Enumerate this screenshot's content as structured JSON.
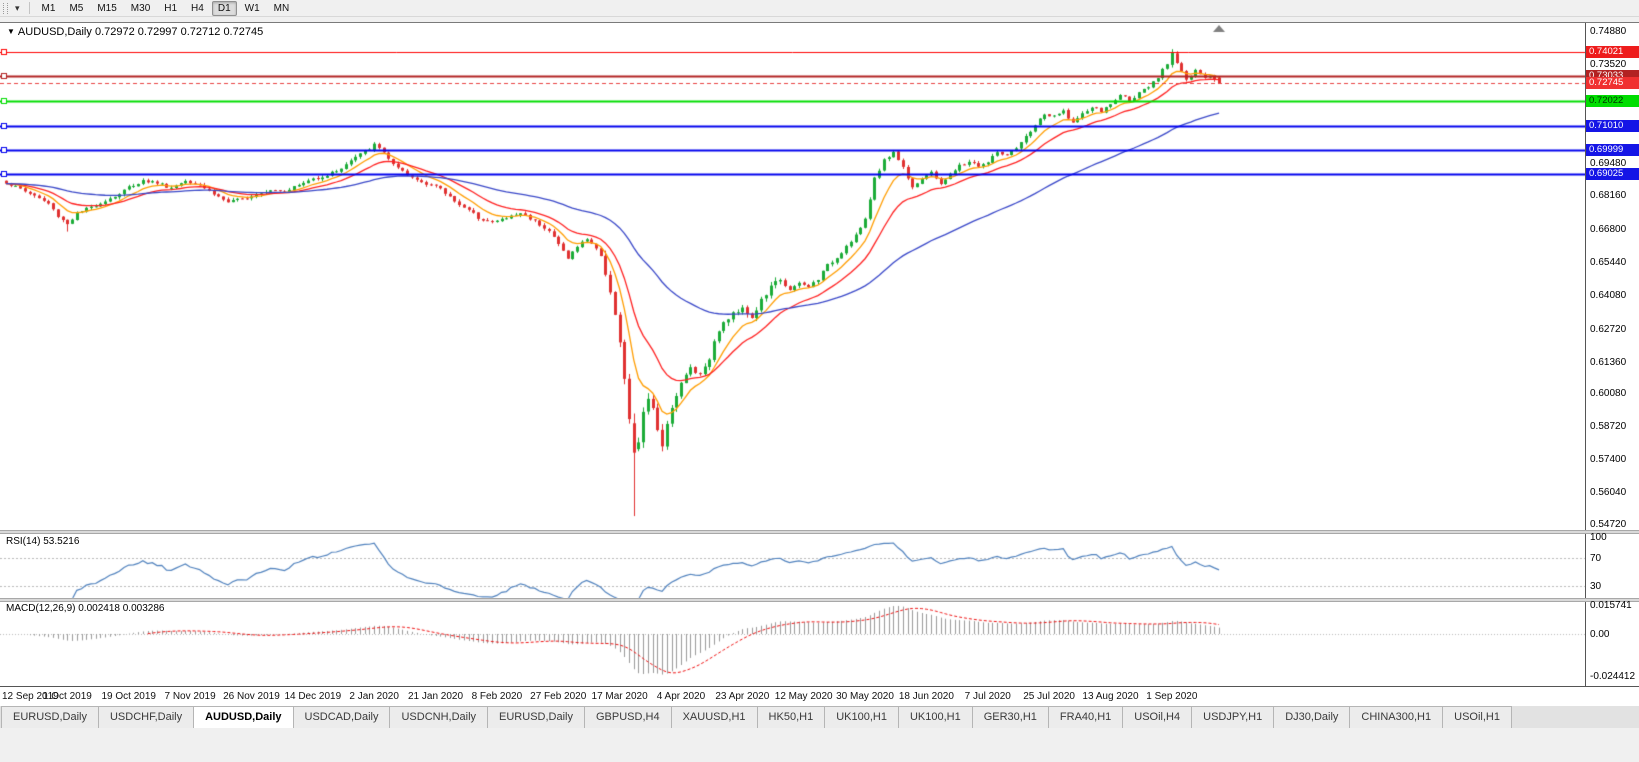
{
  "toolbar": {
    "timeframes": [
      "M1",
      "M5",
      "M15",
      "M30",
      "H1",
      "H4",
      "D1",
      "W1",
      "MN"
    ],
    "selected": "D1"
  },
  "chart": {
    "symbol": "AUDUSD,Daily",
    "ohlc": {
      "open": "0.72972",
      "high": "0.72997",
      "low": "0.72712",
      "close": "0.72745"
    }
  },
  "price_axis": {
    "ticks": [
      "0.74880",
      "0.73520",
      "0.69480",
      "0.68160",
      "0.66800",
      "0.65440",
      "0.64080",
      "0.62720",
      "0.61360",
      "0.60080",
      "0.58720",
      "0.57400",
      "0.56040",
      "0.54720"
    ],
    "tags": [
      {
        "value": "0.74021",
        "bg": "#ee1c1c",
        "fg": "#ffffff"
      },
      {
        "value": "0.73033",
        "bg": "#b22222",
        "fg": "#ffffff"
      },
      {
        "value": "0.72745",
        "bg": "#f03030",
        "fg": "#ffffff"
      },
      {
        "value": "0.72022",
        "bg": "#00dd00",
        "fg": "#003300"
      },
      {
        "value": "0.71010",
        "bg": "#1515e6",
        "fg": "#ffffff"
      },
      {
        "value": "0.69999",
        "bg": "#1515e6",
        "fg": "#ffffff"
      },
      {
        "value": "0.69025",
        "bg": "#1515e6",
        "fg": "#ffffff"
      }
    ]
  },
  "hlines": [
    {
      "price": 0.74021,
      "color": "#ff0000",
      "width": 1,
      "style": "solid"
    },
    {
      "price": 0.73033,
      "color": "#b22222",
      "width": 2,
      "style": "solid"
    },
    {
      "price": 0.72745,
      "color": "#e84040",
      "width": 1,
      "style": "dash"
    },
    {
      "price": 0.72022,
      "color": "#00dd00",
      "width": 2,
      "style": "solid"
    },
    {
      "price": 0.7101,
      "color": "#0000ee",
      "width": 2,
      "style": "solid"
    },
    {
      "price": 0.69999,
      "color": "#0000ee",
      "width": 2,
      "style": "solid"
    },
    {
      "price": 0.69025,
      "color": "#0000ee",
      "width": 2,
      "style": "solid"
    }
  ],
  "dates": [
    "12 Sep 2019",
    "1 Oct 2019",
    "19 Oct 2019",
    "7 Nov 2019",
    "26 Nov 2019",
    "14 Dec 2019",
    "2 Jan 2020",
    "21 Jan 2020",
    "8 Feb 2020",
    "27 Feb 2020",
    "17 Mar 2020",
    "4 Apr 2020",
    "23 Apr 2020",
    "12 May 2020",
    "30 May 2020",
    "18 Jun 2020",
    "7 Jul 2020",
    "25 Jul 2020",
    "13 Aug 2020",
    "1 Sep 2020"
  ],
  "rsi": {
    "label": "RSI(14)",
    "value": "53.5216",
    "levels": [
      "100",
      "70",
      "30"
    ]
  },
  "macd": {
    "label": "MACD(12,26,9)",
    "value1": "0.002418",
    "value2": "0.003286",
    "axis": [
      "0.015741",
      "0.00",
      "-0.024412"
    ]
  },
  "tabs": [
    "EURUSD,Daily",
    "USDCHF,Daily",
    "AUDUSD,Daily",
    "USDCAD,Daily",
    "USDCNH,Daily",
    "EURUSD,Daily",
    "GBPUSD,H4",
    "XAUUSD,H1",
    "HK50,H1",
    "UK100,H1",
    "UK100,H1",
    "GER30,H1",
    "FRA40,H1",
    "USOil,H4",
    "USDJPY,H1",
    "DJ30,Daily",
    "CHINA300,H1",
    "USOil,H1"
  ],
  "active_tab_index": 2,
  "colors": {
    "candle_up": "#1cac38",
    "candle_down": "#e03131",
    "ma_orange": "#ff9d00",
    "ma_red": "#ff2020",
    "ma_blue": "#3947c8",
    "rsi_line": "#4f81bd",
    "macd_histogram": "#9a9a9a",
    "macd_signal": "#ee1111",
    "level_dash": "#b8b8b8",
    "shift_marker": "#808080"
  },
  "chart_data": {
    "type": "candlestick",
    "symbol": "AUDUSD",
    "timeframe": "Daily",
    "bars": 258,
    "visible_price_range": [
      0.5445,
      0.752
    ],
    "current_bar": {
      "open": 0.72972,
      "high": 0.72997,
      "low": 0.72712,
      "close": 0.72745
    },
    "key_points": {
      "crash_low": 0.5506,
      "recent_high": 0.7413,
      "early_peak": 0.7031,
      "early_dip_low": 0.6668
    },
    "indicators": {
      "rsi": {
        "period": 14,
        "current": 53.5216
      },
      "macd": {
        "fast": 12,
        "slow": 26,
        "signal": 9,
        "current_main": 0.002418,
        "current_signal": 0.003286,
        "scale_max": 0.015741,
        "scale_min": -0.024412
      },
      "moving_averages": [
        {
          "color_key": "ma_orange",
          "period": 8,
          "type": "ema"
        },
        {
          "color_key": "ma_red",
          "period": 17,
          "type": "ema"
        },
        {
          "color_key": "ma_blue",
          "period": 55,
          "type": "ema"
        }
      ]
    },
    "close_anchors": [
      [
        0,
        0.6868
      ],
      [
        3,
        0.6842
      ],
      [
        6,
        0.6815
      ],
      [
        9,
        0.6782
      ],
      [
        11,
        0.6732
      ],
      [
        13,
        0.67
      ],
      [
        15,
        0.6742
      ],
      [
        18,
        0.6768
      ],
      [
        21,
        0.6795
      ],
      [
        24,
        0.6822
      ],
      [
        26,
        0.685
      ],
      [
        29,
        0.6876
      ],
      [
        32,
        0.6868
      ],
      [
        35,
        0.6846
      ],
      [
        38,
        0.6878
      ],
      [
        41,
        0.686
      ],
      [
        44,
        0.6822
      ],
      [
        47,
        0.6788
      ],
      [
        50,
        0.68
      ],
      [
        53,
        0.6824
      ],
      [
        56,
        0.684
      ],
      [
        59,
        0.6836
      ],
      [
        62,
        0.6858
      ],
      [
        65,
        0.6884
      ],
      [
        68,
        0.6898
      ],
      [
        71,
        0.6928
      ],
      [
        74,
        0.6972
      ],
      [
        77,
        0.7008
      ],
      [
        78,
        0.7022
      ],
      [
        80,
        0.6994
      ],
      [
        82,
        0.694
      ],
      [
        85,
        0.6896
      ],
      [
        88,
        0.6872
      ],
      [
        91,
        0.6854
      ],
      [
        94,
        0.681
      ],
      [
        97,
        0.6766
      ],
      [
        100,
        0.6726
      ],
      [
        103,
        0.6706
      ],
      [
        106,
        0.6724
      ],
      [
        109,
        0.6744
      ],
      [
        112,
        0.6712
      ],
      [
        115,
        0.6672
      ],
      [
        117,
        0.6616
      ],
      [
        119,
        0.6562
      ],
      [
        121,
        0.6606
      ],
      [
        123,
        0.664
      ],
      [
        125,
        0.6602
      ],
      [
        127,
        0.6506
      ],
      [
        128,
        0.643
      ],
      [
        129,
        0.633
      ],
      [
        130,
        0.6208
      ],
      [
        131,
        0.6052
      ],
      [
        132,
        0.5906
      ],
      [
        133,
        0.5765
      ],
      [
        134,
        0.5812
      ],
      [
        135,
        0.5936
      ],
      [
        136,
        0.597
      ],
      [
        137,
        0.5936
      ],
      [
        138,
        0.5862
      ],
      [
        139,
        0.5806
      ],
      [
        140,
        0.5882
      ],
      [
        141,
        0.5962
      ],
      [
        143,
        0.6046
      ],
      [
        145,
        0.6114
      ],
      [
        147,
        0.6086
      ],
      [
        149,
        0.6156
      ],
      [
        151,
        0.627
      ],
      [
        153,
        0.6314
      ],
      [
        156,
        0.6364
      ],
      [
        158,
        0.6312
      ],
      [
        160,
        0.6386
      ],
      [
        162,
        0.644
      ],
      [
        164,
        0.6476
      ],
      [
        166,
        0.6426
      ],
      [
        168,
        0.6456
      ],
      [
        170,
        0.6442
      ],
      [
        172,
        0.6476
      ],
      [
        174,
        0.653
      ],
      [
        176,
        0.6562
      ],
      [
        178,
        0.661
      ],
      [
        180,
        0.6654
      ],
      [
        182,
        0.6714
      ],
      [
        184,
        0.6888
      ],
      [
        186,
        0.6958
      ],
      [
        188,
        0.6994
      ],
      [
        190,
        0.693
      ],
      [
        192,
        0.6852
      ],
      [
        194,
        0.6886
      ],
      [
        196,
        0.6906
      ],
      [
        198,
        0.6866
      ],
      [
        200,
        0.69
      ],
      [
        202,
        0.6936
      ],
      [
        204,
        0.6954
      ],
      [
        206,
        0.6936
      ],
      [
        208,
        0.695
      ],
      [
        210,
        0.6994
      ],
      [
        212,
        0.6976
      ],
      [
        214,
        0.7006
      ],
      [
        216,
        0.7054
      ],
      [
        218,
        0.7104
      ],
      [
        220,
        0.7146
      ],
      [
        222,
        0.7136
      ],
      [
        224,
        0.716
      ],
      [
        226,
        0.7112
      ],
      [
        228,
        0.7146
      ],
      [
        230,
        0.7176
      ],
      [
        232,
        0.716
      ],
      [
        234,
        0.7186
      ],
      [
        236,
        0.7226
      ],
      [
        238,
        0.7206
      ],
      [
        240,
        0.7232
      ],
      [
        242,
        0.7256
      ],
      [
        244,
        0.7296
      ],
      [
        246,
        0.7356
      ],
      [
        247,
        0.7399
      ],
      [
        248,
        0.7362
      ],
      [
        249,
        0.7322
      ],
      [
        250,
        0.7288
      ],
      [
        251,
        0.7302
      ],
      [
        252,
        0.7322
      ],
      [
        253,
        0.7312
      ],
      [
        254,
        0.7292
      ],
      [
        255,
        0.7302
      ],
      [
        256,
        0.7292
      ],
      [
        257,
        0.72745
      ]
    ]
  }
}
